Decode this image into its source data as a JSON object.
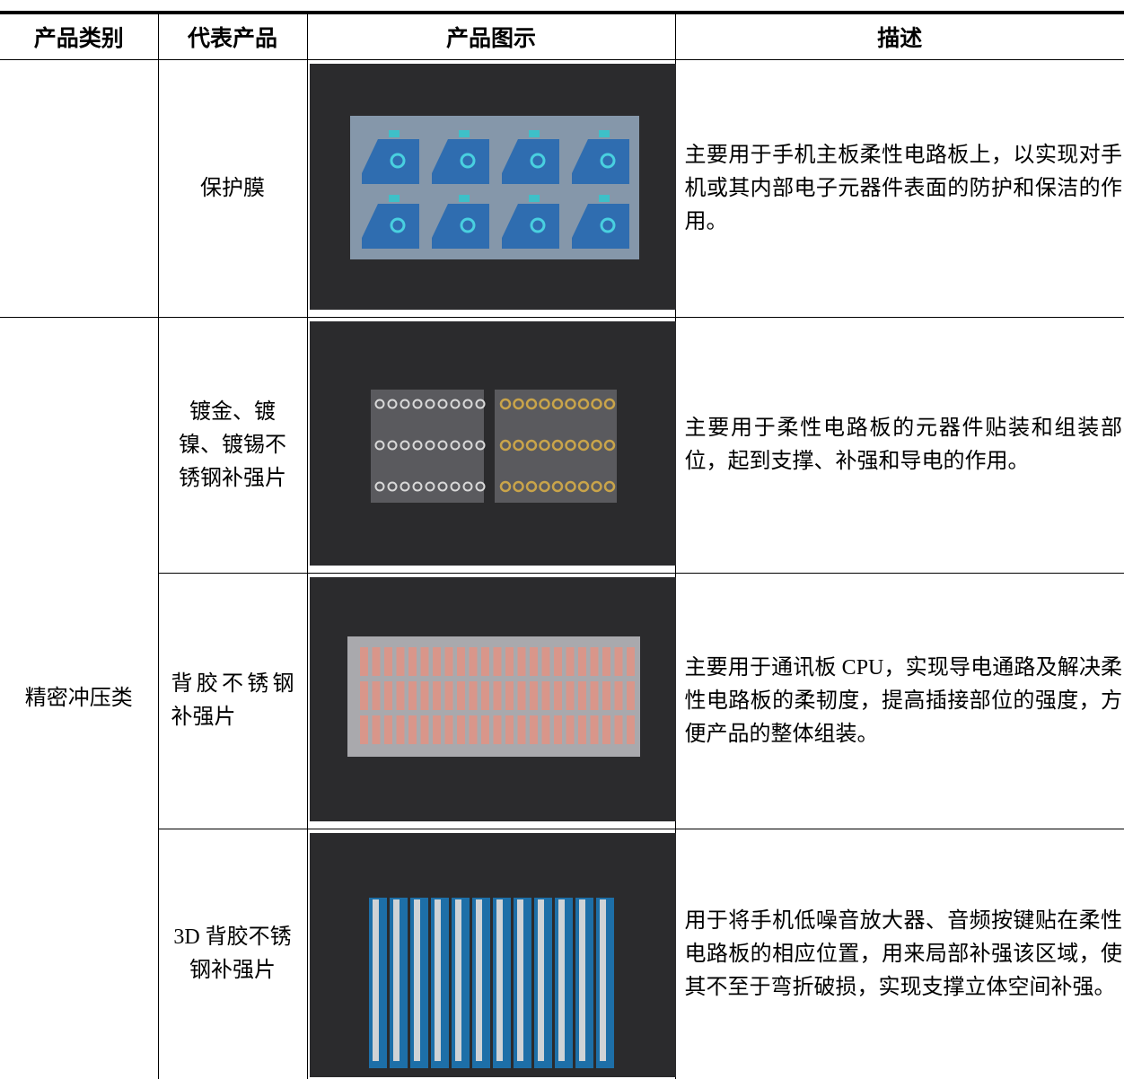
{
  "table": {
    "headers": [
      "产品类别",
      "代表产品",
      "产品图示",
      "描述"
    ],
    "rows": [
      {
        "product": "保护膜",
        "description": "主要用于手机主板柔性电路板上，以实现对手机或其内部电子元器件表面的防护和保洁的作用。"
      },
      {
        "category": "精密冲压类",
        "product": "镀金、镀镍、镀锡不锈钢补强片",
        "description": "主要用于柔性电路板的元器件贴装和组装部位，起到支撑、补强和导电的作用。"
      },
      {
        "product": "背胶不锈钢补强片",
        "description": "主要用于通讯板 CPU，实现导电通路及解决柔性电路板的柔韧度，提高插接部位的强度，方便产品的整体组装。"
      },
      {
        "product": "3D 背胶不锈钢补强片",
        "description": "用于将手机低噪音放大器、音频按键贴在柔性电路板的相应位置，用来局部补强该区域，使其不至于弯折破损，实现支撑立体空间补强。"
      }
    ]
  }
}
